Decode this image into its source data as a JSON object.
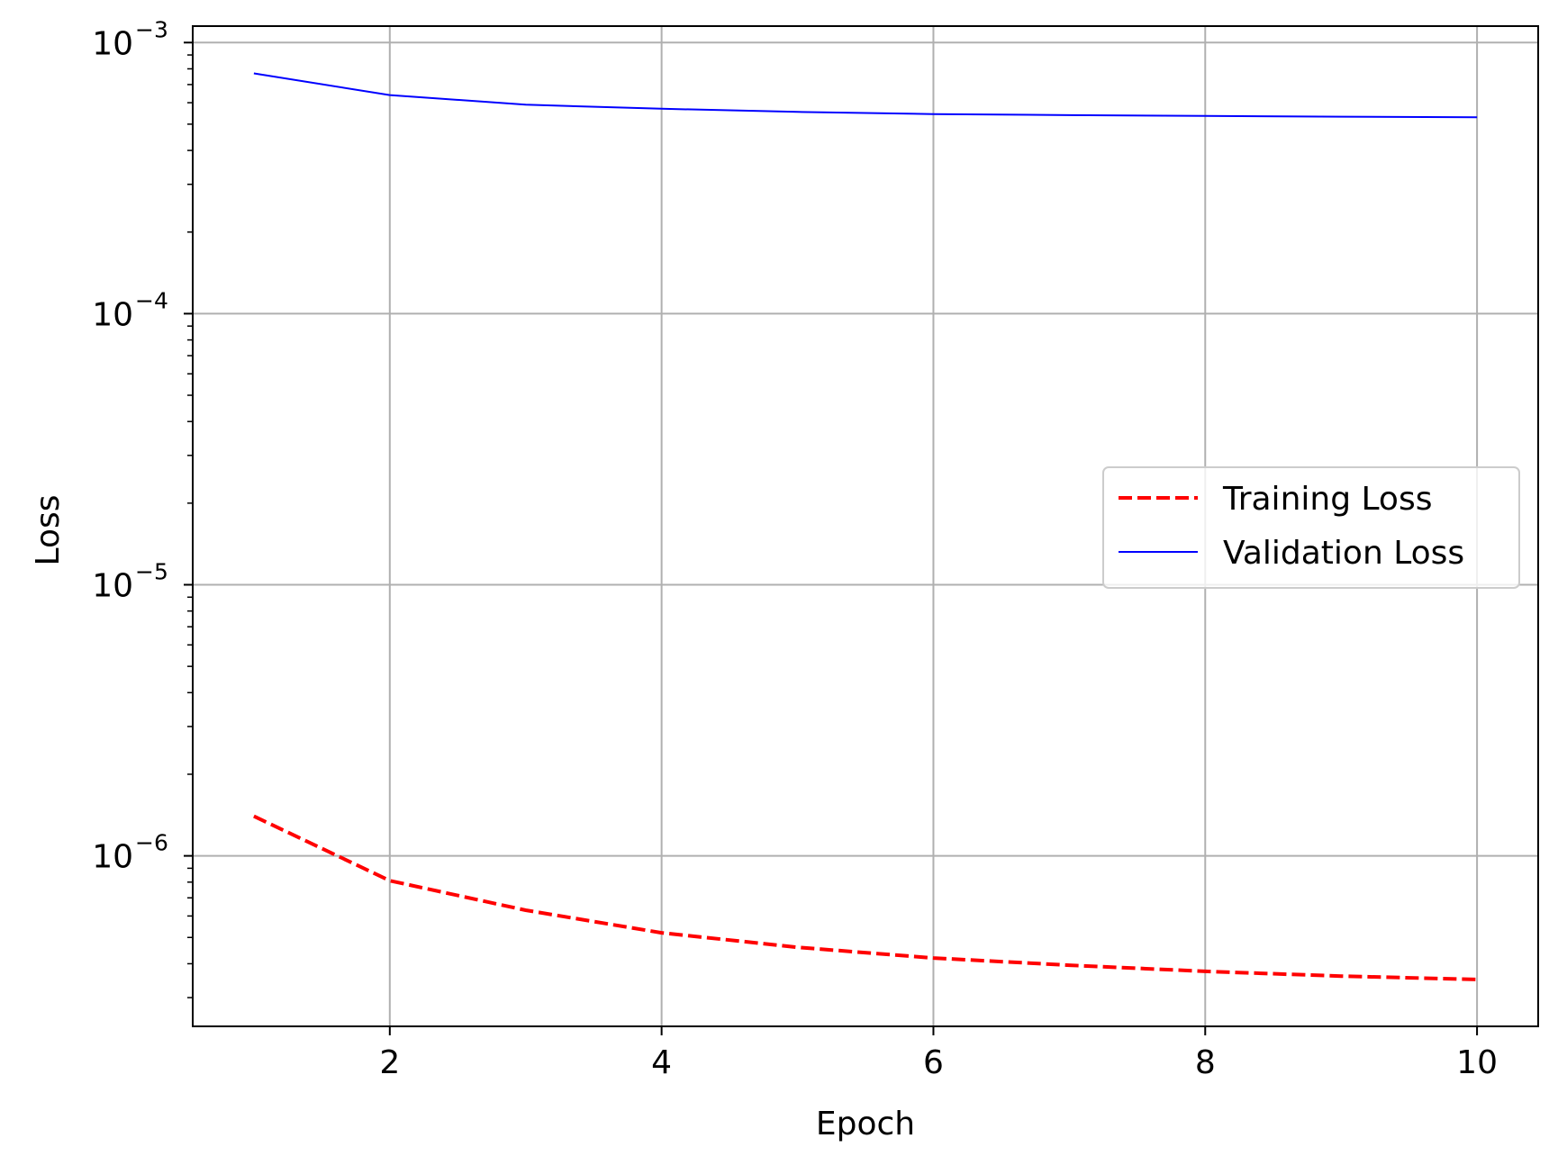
{
  "chart_data": {
    "type": "line",
    "title": "",
    "xlabel": "Epoch",
    "ylabel": "Loss",
    "x": [
      1,
      2,
      3,
      4,
      5,
      6,
      7,
      8,
      9,
      10
    ],
    "series": [
      {
        "name": "Training Loss",
        "color": "#ff0000",
        "style": "dashed",
        "values": [
          1.4e-06,
          8.1e-07,
          6.3e-07,
          5.2e-07,
          4.6e-07,
          4.2e-07,
          3.95e-07,
          3.75e-07,
          3.6e-07,
          3.5e-07
        ]
      },
      {
        "name": "Validation Loss",
        "color": "#0000ff",
        "style": "solid",
        "values": [
          0.00077,
          0.00064,
          0.00059,
          0.00057,
          0.000555,
          0.000545,
          0.00054,
          0.000536,
          0.000533,
          0.00053
        ]
      }
    ],
    "xlim": [
      0.55,
      10.45
    ],
    "ylim": [
      2.35e-07,
      0.00115
    ],
    "yscale": "log",
    "xticks": [
      "2",
      "4",
      "6",
      "8",
      "10"
    ],
    "yticks": [
      {
        "base": "10",
        "exp": "−6"
      },
      {
        "base": "10",
        "exp": "−5"
      },
      {
        "base": "10",
        "exp": "−4"
      },
      {
        "base": "10",
        "exp": "−3"
      }
    ],
    "grid": true,
    "legend": {
      "location": "center-right",
      "entries": [
        "Training Loss",
        "Validation Loss"
      ]
    }
  }
}
